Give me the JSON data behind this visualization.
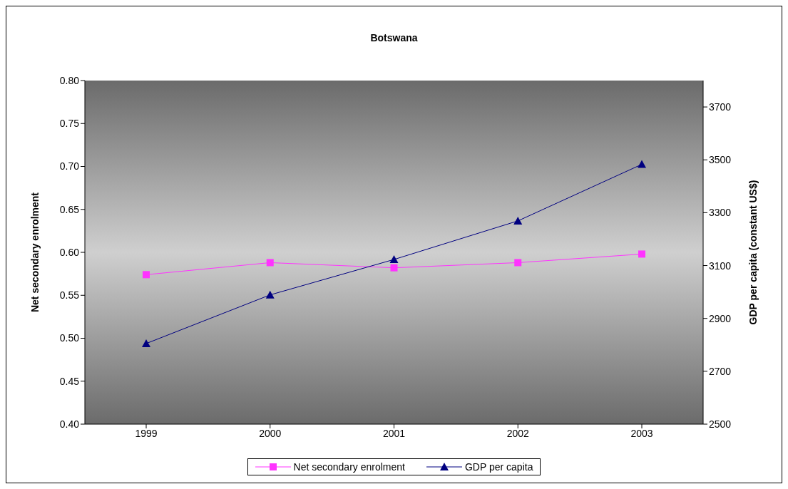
{
  "chart_data": {
    "type": "line",
    "title": "Botswana",
    "ylabel": "Net secondary enrolment",
    "y2label": "GDP per capita (constant US$)",
    "categories": [
      "1999",
      "2000",
      "2001",
      "2002",
      "2003"
    ],
    "series": [
      {
        "name": "Net secondary enrolment",
        "color": "#ff33ff",
        "marker": "square",
        "values": [
          0.574,
          0.588,
          0.582,
          0.588,
          0.598
        ]
      },
      {
        "name": "GDP per capita",
        "color": "#000080",
        "marker": "triangle",
        "axis": "y2",
        "values": [
          2805,
          2989,
          3123,
          3269,
          3483
        ]
      }
    ],
    "ylim": [
      0.4,
      0.8
    ],
    "yticks": [
      {
        "value": 0.4,
        "label": "0.40"
      },
      0.45,
      {
        "value": 0.5,
        "label": "0.50"
      },
      0.55,
      {
        "value": 0.6,
        "label": "0.60"
      },
      0.65,
      {
        "value": 0.7,
        "label": "0.70"
      },
      0.75,
      {
        "value": 0.8,
        "label": "0.80"
      }
    ],
    "y2lim": [
      2500,
      3800
    ],
    "y2ticks": [
      2500,
      2700,
      2900,
      3100,
      3300,
      3500,
      3700
    ],
    "grid": false,
    "legend": "bottom"
  }
}
